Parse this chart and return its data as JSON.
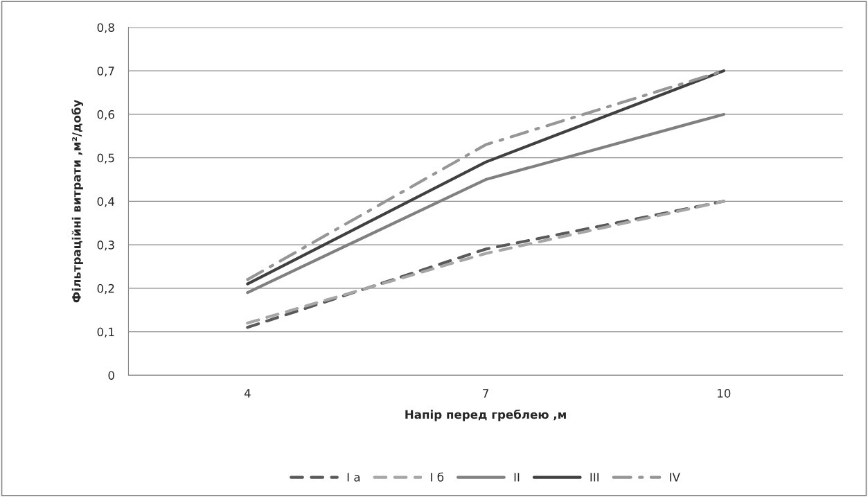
{
  "chart_data": {
    "type": "line",
    "xlabel": "Напір перед греблею ,м",
    "ylabel": "Фільтраційні витрати ,м²/добу",
    "categories": [
      "4",
      "7",
      "10"
    ],
    "series": [
      {
        "name": "I a",
        "color": "#595959",
        "line_style": "dashed",
        "values": [
          0.11,
          0.29,
          0.4
        ]
      },
      {
        "name": "I б",
        "color": "#a6a6a6",
        "line_style": "dashed",
        "values": [
          0.12,
          0.28,
          0.4
        ]
      },
      {
        "name": "II",
        "color": "#808080",
        "line_style": "solid",
        "values": [
          0.19,
          0.45,
          0.6
        ]
      },
      {
        "name": "III",
        "color": "#404040",
        "line_style": "solid",
        "values": [
          0.21,
          0.49,
          0.7
        ]
      },
      {
        "name": "IV",
        "color": "#969696",
        "line_style": "dashdot",
        "values": [
          0.22,
          0.53,
          0.7
        ]
      }
    ],
    "ylim": [
      0,
      0.8
    ],
    "yticks": [
      0,
      {
        "value": 0.1,
        "label": "0,1"
      },
      {
        "value": 0.2,
        "label": "0,2"
      },
      {
        "value": 0.3,
        "label": "0,3"
      },
      {
        "value": 0.4,
        "label": "0,4"
      },
      {
        "value": 0.5,
        "label": "0,5"
      },
      {
        "value": 0.6,
        "label": "0,6"
      },
      {
        "value": 0.7,
        "label": "0,7"
      },
      {
        "value": 0.8,
        "label": "0,8"
      }
    ],
    "grid": "y",
    "legend": "bottom",
    "marker": "none"
  }
}
